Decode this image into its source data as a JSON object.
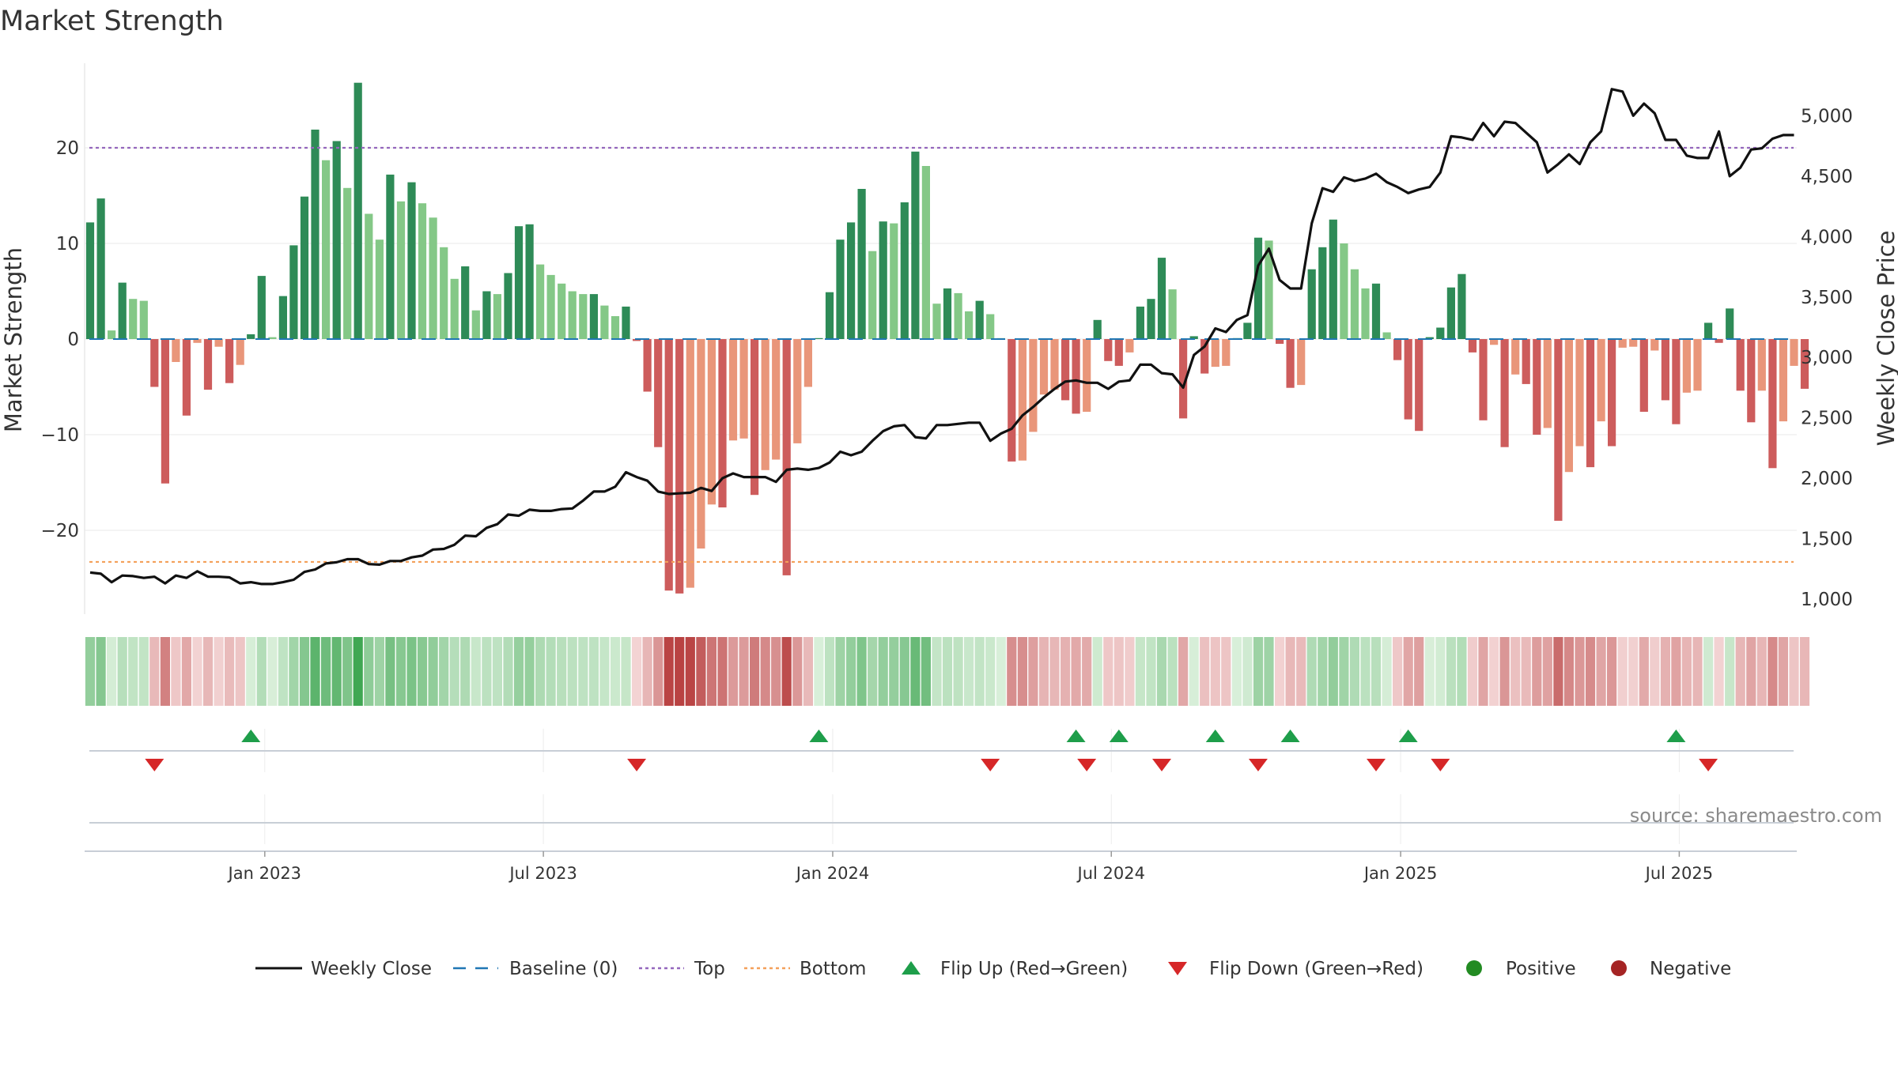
{
  "chart_data": {
    "type": "bar",
    "title": "Market Strength",
    "source": "source: sharemaestro.com",
    "ylabel_left": "Market Strength",
    "ylabel_right": "Weekly Close Price",
    "ylim_left": [
      -29,
      29
    ],
    "ylim_right": [
      875,
      5350
    ],
    "left_ticks": [
      {
        "v": 20,
        "label": "20"
      },
      {
        "v": 10,
        "label": "10"
      },
      {
        "v": 0,
        "label": "0"
      },
      {
        "v": -10,
        "label": "−10"
      },
      {
        "v": -20,
        "label": "−20"
      }
    ],
    "right_ticks": [
      {
        "v": 5000,
        "label": "5,000"
      },
      {
        "v": 4500,
        "label": "4,500"
      },
      {
        "v": 4000,
        "label": "4,000"
      },
      {
        "v": 3500,
        "label": "3,500"
      },
      {
        "v": 3000,
        "label": "3,000"
      },
      {
        "v": 2500,
        "label": "2,500"
      },
      {
        "v": 2000,
        "label": "2,000"
      },
      {
        "v": 1500,
        "label": "1,500"
      },
      {
        "v": 1000,
        "label": "1,000"
      }
    ],
    "x_ticks": [
      {
        "i": 16,
        "label": "Jan 2023"
      },
      {
        "i": 42,
        "label": "Jul 2023"
      },
      {
        "i": 69,
        "label": "Jan 2024"
      },
      {
        "i": 95,
        "label": "Jul 2024"
      },
      {
        "i": 122,
        "label": "Jan 2025"
      },
      {
        "i": 148,
        "label": "Jul 2025"
      }
    ],
    "top_line": 20,
    "bottom_line": -23.3,
    "baseline": 0,
    "strength": [
      12.2,
      14.7,
      0.9,
      5.9,
      4.2,
      4.0,
      -5.0,
      -15.1,
      -2.4,
      -8.0,
      -0.4,
      -5.3,
      -0.8,
      -4.6,
      -2.7,
      0.5,
      6.6,
      0.2,
      4.5,
      9.8,
      14.9,
      21.9,
      18.7,
      20.7,
      15.8,
      26.8,
      13.1,
      10.4,
      17.2,
      14.4,
      16.4,
      14.2,
      12.7,
      9.6,
      6.3,
      7.6,
      3.0,
      5.0,
      4.7,
      6.9,
      11.8,
      12.0,
      7.8,
      6.7,
      5.8,
      5.0,
      4.7,
      4.7,
      3.5,
      2.4,
      3.4,
      -0.2,
      -5.5,
      -11.3,
      -26.3,
      -26.6,
      -26.0,
      -21.9,
      -17.3,
      -17.6,
      -10.6,
      -10.4,
      -16.3,
      -13.7,
      -12.6,
      -24.7,
      -10.9,
      -5.0,
      0.1,
      4.9,
      10.4,
      12.2,
      15.7,
      9.2,
      12.3,
      12.1,
      14.3,
      19.6,
      18.1,
      3.7,
      5.3,
      4.8,
      2.9,
      4.0,
      2.6,
      0.1,
      -12.8,
      -12.7,
      -9.7,
      -5.8,
      -5.3,
      -6.4,
      -7.8,
      -7.6,
      2.0,
      -2.3,
      -2.8,
      -1.4,
      3.4,
      4.2,
      8.5,
      5.2,
      -8.3,
      0.3,
      -3.6,
      -2.9,
      -2.8,
      0.1,
      1.7,
      10.6,
      10.3,
      -0.5,
      -5.1,
      -4.8,
      7.3,
      9.6,
      12.5,
      10.0,
      7.3,
      5.3,
      5.8,
      0.7,
      -2.2,
      -8.4,
      -9.6,
      0.2,
      1.2,
      5.4,
      6.8,
      -1.4,
      -8.5,
      -0.6,
      -11.3,
      -3.7,
      -4.7,
      -10.0,
      -9.3,
      -19.0,
      -13.9,
      -11.2,
      -13.4,
      -8.6,
      -11.2,
      -0.9,
      -0.8,
      -7.6,
      -1.2,
      -6.4,
      -8.9,
      -5.6,
      -5.4,
      1.7,
      -0.4,
      3.2,
      -5.4,
      -8.7,
      -5.4,
      -13.5,
      -8.6,
      -2.8,
      -5.2
    ],
    "weekly_close": [
      1220,
      1210,
      1140,
      1195,
      1190,
      1175,
      1185,
      1130,
      1195,
      1175,
      1230,
      1185,
      1185,
      1180,
      1130,
      1140,
      1125,
      1125,
      1140,
      1160,
      1225,
      1245,
      1295,
      1305,
      1330,
      1330,
      1290,
      1285,
      1315,
      1315,
      1345,
      1360,
      1410,
      1415,
      1450,
      1525,
      1520,
      1590,
      1620,
      1700,
      1690,
      1740,
      1730,
      1730,
      1745,
      1750,
      1815,
      1890,
      1890,
      1930,
      2050,
      2010,
      1980,
      1890,
      1870,
      1875,
      1880,
      1920,
      1895,
      2000,
      2040,
      2010,
      2010,
      2010,
      1970,
      2070,
      2080,
      2070,
      2085,
      2130,
      2220,
      2190,
      2220,
      2310,
      2390,
      2430,
      2440,
      2340,
      2330,
      2440,
      2440,
      2450,
      2460,
      2460,
      2310,
      2370,
      2410,
      2520,
      2590,
      2670,
      2740,
      2800,
      2810,
      2790,
      2790,
      2740,
      2800,
      2810,
      2940,
      2940,
      2870,
      2860,
      2750,
      3020,
      3090,
      3240,
      3210,
      3310,
      3350,
      3760,
      3900,
      3640,
      3570,
      3570,
      4110,
      4400,
      4370,
      4490,
      4460,
      4480,
      4520,
      4450,
      4410,
      4360,
      4390,
      4410,
      4530,
      4830,
      4820,
      4800,
      4940,
      4830,
      4950,
      4940,
      4860,
      4780,
      4530,
      4600,
      4680,
      4600,
      4780,
      4870,
      5220,
      5200,
      5000,
      5100,
      5020,
      4800,
      4800,
      4670,
      4650,
      4650,
      4870,
      4500,
      4570,
      4720,
      4730,
      4810,
      4840,
      4840
    ],
    "flips_up": [
      15,
      68,
      92,
      96,
      105,
      112,
      123,
      148
    ],
    "flips_down": [
      6,
      51,
      84,
      93,
      100,
      109,
      120,
      126,
      151
    ],
    "legend": [
      {
        "key": "weekly_close",
        "label": "Weekly Close",
        "color": "#111111"
      },
      {
        "key": "baseline",
        "label": "Baseline (0)",
        "color": "#1f77b4"
      },
      {
        "key": "top",
        "label": "Top",
        "color": "#9467bd"
      },
      {
        "key": "bottom",
        "label": "Bottom",
        "color": "#f4a05a"
      },
      {
        "key": "flip_up",
        "label": "Flip Up (Red→Green)",
        "color": "#1e9e4a"
      },
      {
        "key": "flip_down",
        "label": "Flip Down (Green→Red)",
        "color": "#d62728"
      },
      {
        "key": "positive",
        "label": "Positive",
        "color": "#228b22"
      },
      {
        "key": "negative",
        "label": "Negative",
        "color": "#a52424"
      }
    ],
    "colors": {
      "pos_dark": "#2e8b57",
      "pos_light": "#84c887",
      "neg_dark": "#cd5c5c",
      "neg_light": "#e9967a",
      "close_line": "#111111",
      "grid": "#e8e8e8"
    }
  }
}
